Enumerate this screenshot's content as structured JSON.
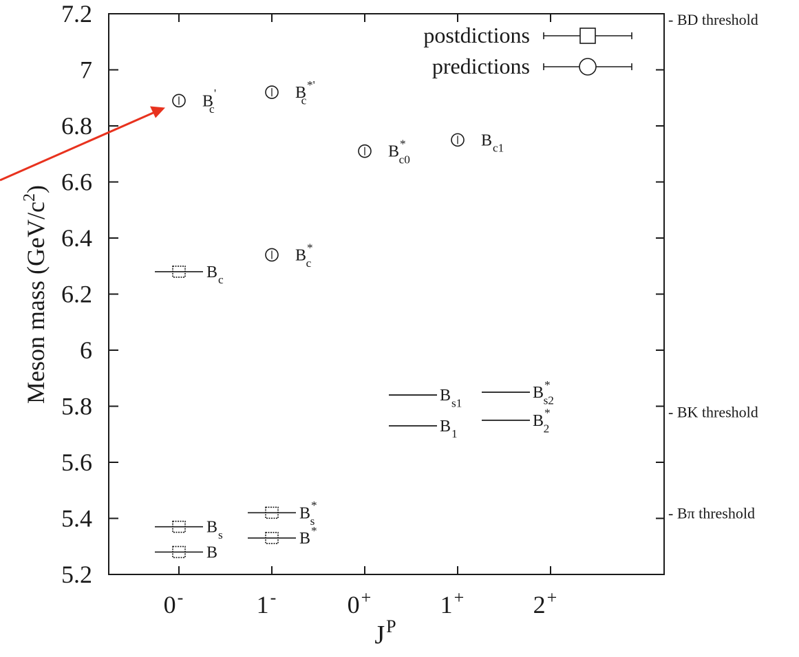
{
  "chart_data": {
    "type": "scatter",
    "ylabel_text": "Meson mass (GeV/c",
    "ylabel_sup": "2",
    "ylabel_close": ")",
    "xlabel_base": "J",
    "xlabel_sup": "P",
    "ylim": [
      5.2,
      7.2
    ],
    "yticks": [
      "5.2",
      "5.4",
      "5.6",
      "5.8",
      "6",
      "6.2",
      "6.4",
      "6.6",
      "6.8",
      "7",
      "7.2"
    ],
    "categories": [
      {
        "base": "0",
        "sup": "-"
      },
      {
        "base": "1",
        "sup": "-"
      },
      {
        "base": "0",
        "sup": "+"
      },
      {
        "base": "1",
        "sup": "+"
      },
      {
        "base": "2",
        "sup": "+"
      }
    ],
    "legend": {
      "position": "top-right",
      "entries": [
        {
          "label": "postdictions",
          "marker": "square"
        },
        {
          "label": "predictions",
          "marker": "circle"
        }
      ]
    },
    "series": [
      {
        "name": "postdictions",
        "marker": "square",
        "points": [
          {
            "category": 0,
            "mass": 5.28,
            "label": "B",
            "sub": "",
            "sup": ""
          },
          {
            "category": 0,
            "mass": 5.37,
            "label": "B",
            "sub": "s",
            "sup": ""
          },
          {
            "category": 0,
            "mass": 6.28,
            "label": "B",
            "sub": "c",
            "sup": ""
          },
          {
            "category": 1,
            "mass": 5.33,
            "label": "B",
            "sub": "",
            "sup": "*"
          },
          {
            "category": 1,
            "mass": 5.42,
            "label": "B",
            "sub": "s",
            "sup": "*"
          }
        ]
      },
      {
        "name": "predictions",
        "marker": "circle",
        "points": [
          {
            "category": 0,
            "mass": 6.89,
            "label": "B",
            "sub": "c",
            "sup": "'"
          },
          {
            "category": 1,
            "mass": 6.34,
            "label": "B",
            "sub": "c",
            "sup": "*"
          },
          {
            "category": 1,
            "mass": 6.92,
            "label": "B",
            "sub": "c",
            "sup": "*'"
          },
          {
            "category": 2,
            "mass": 6.71,
            "label": "B",
            "sub": "c0",
            "sup": "*"
          },
          {
            "category": 3,
            "mass": 6.75,
            "label": "B",
            "sub": "c1",
            "sup": ""
          }
        ]
      }
    ],
    "levels": [
      {
        "category": 3,
        "mass": 5.84,
        "label": "B",
        "sub": "s1",
        "sup": ""
      },
      {
        "category": 3,
        "mass": 5.73,
        "label": "B",
        "sub": "1",
        "sup": ""
      },
      {
        "category": 4,
        "mass": 5.85,
        "label": "B",
        "sub": "s2",
        "sup": "*"
      },
      {
        "category": 4,
        "mass": 5.75,
        "label": "B",
        "sub": "2",
        "sup": "*"
      }
    ],
    "thresholds": [
      {
        "mass": 7.18,
        "label": "- BD threshold"
      },
      {
        "mass": 5.78,
        "label": "- BK threshold"
      },
      {
        "mass": 5.42,
        "label": "- Bπ threshold"
      }
    ],
    "annotation": {
      "type": "arrow",
      "color": "#e8321e",
      "target_category": 0,
      "target_mass": 6.87
    }
  }
}
